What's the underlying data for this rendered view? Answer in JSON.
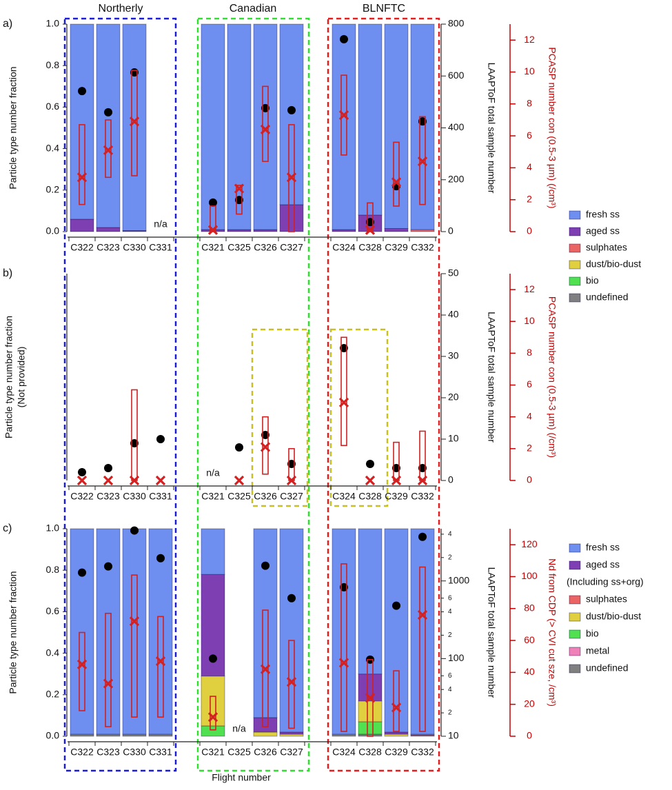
{
  "groups": [
    "Northerly",
    "Canadian",
    "BLNFTC"
  ],
  "x_label": "Flight number",
  "chart_data": [
    {
      "type": "bar",
      "panel_label": "a)",
      "y_label": "Particle type number fraction",
      "y2_label": "LAAPToF total sample number",
      "y3_label": "PCASP number con (0.5-3 µm) (/cm³)",
      "categories": [
        "C322",
        "C323",
        "C330",
        "C331",
        "C321",
        "C325",
        "C326",
        "C327",
        "C324",
        "C328",
        "C329",
        "C332"
      ],
      "ylim": [
        0,
        1
      ],
      "yticks": [
        {
          "value": 0,
          "label": "0.0"
        },
        {
          "value": 0.2,
          "label": "0.2"
        },
        {
          "value": 0.4,
          "label": "0.4"
        },
        {
          "value": 0.6,
          "label": "0.6"
        },
        {
          "value": 0.8,
          "label": "0.8"
        },
        {
          "value": 1,
          "label": "1.0"
        }
      ],
      "y2lim": [
        0,
        800
      ],
      "y2ticks": [
        0,
        200,
        400,
        600,
        800
      ],
      "y3lim": [
        0,
        13
      ],
      "y3ticks": [
        0,
        2,
        4,
        6,
        8,
        10,
        12
      ],
      "series": [
        {
          "name": "fresh ss",
          "color": "#6f8ff0",
          "values": [
            0.94,
            0.98,
            0.995,
            null,
            0.99,
            0.99,
            0.99,
            0.87,
            0.99,
            0.92,
            0.985,
            0.99
          ]
        },
        {
          "name": "aged ss",
          "color": "#7d3fb2",
          "values": [
            0.06,
            0.02,
            0.005,
            null,
            0.01,
            0.01,
            0.01,
            0.13,
            0.01,
            0.08,
            0.015,
            0
          ]
        },
        {
          "name": "sulphates",
          "color": "#ea6464",
          "values": [
            0,
            0,
            0,
            null,
            0,
            0,
            0,
            0,
            0,
            0,
            0,
            0.01
          ]
        },
        {
          "name": "dust/bio-dust",
          "color": "#e0d040",
          "values": [
            0,
            0,
            0,
            null,
            0,
            0,
            0,
            0,
            0,
            0,
            0,
            0
          ]
        },
        {
          "name": "bio",
          "color": "#50e050",
          "values": [
            0,
            0,
            0,
            null,
            0,
            0,
            0,
            0,
            0,
            0,
            0,
            0
          ]
        },
        {
          "name": "undefined",
          "color": "#808080",
          "values": [
            0,
            0,
            0,
            null,
            0,
            0,
            0,
            0,
            0,
            0,
            0,
            0
          ]
        }
      ],
      "sample_number": {
        "axis": "y2",
        "values": [
          542,
          460,
          614,
          null,
          112,
          122,
          476,
          468,
          742,
          37,
          175,
          425
        ]
      },
      "pcasp": {
        "axis": "y3",
        "values": [
          3.4,
          5.1,
          6.9,
          null,
          0.1,
          2.7,
          6.4,
          3.4,
          7.3,
          0.1,
          3.1,
          4.4
        ],
        "max": [
          6.7,
          7.0,
          10.1,
          null,
          1.6,
          2.9,
          9.1,
          6.7,
          9.8,
          1.8,
          5.6,
          7.2
        ],
        "min": [
          1.7,
          3.4,
          3.5,
          null,
          0,
          1.1,
          4.4,
          0,
          4.8,
          0,
          1.6,
          1.7
        ]
      },
      "annotations": [
        {
          "text": "n/a",
          "category": "C331"
        }
      ]
    },
    {
      "type": "bar",
      "panel_label": "b)",
      "y_label": "Particle type number fraction",
      "y_sublabel": "(Not provided)",
      "y2_label": "LAAPToF total sample number",
      "y3_label": "PCASP number con (0.5-3 µm) (/cm³)",
      "categories": [
        "C322",
        "C323",
        "C330",
        "C331",
        "C321",
        "C325",
        "C326",
        "C327",
        "C324",
        "C328",
        "C329",
        "C332"
      ],
      "y2lim": [
        0,
        50
      ],
      "y2ticks": [
        0,
        10,
        20,
        30,
        40,
        50
      ],
      "y3lim": [
        0,
        13
      ],
      "y3ticks": [
        0,
        2,
        4,
        6,
        8,
        10,
        12
      ],
      "sample_number": {
        "axis": "y2",
        "values": [
          2,
          3,
          9,
          10,
          null,
          8,
          11,
          4,
          32,
          4,
          3,
          3
        ]
      },
      "pcasp": {
        "axis": "y3",
        "values": [
          0,
          0,
          0,
          0,
          null,
          0,
          2.1,
          0,
          4.9,
          0,
          0,
          0
        ],
        "max": [
          null,
          null,
          5.7,
          null,
          null,
          null,
          4.0,
          2.0,
          9.0,
          null,
          2.4,
          3.1
        ],
        "min": [
          null,
          null,
          0,
          null,
          null,
          null,
          0.4,
          0,
          2.2,
          null,
          0,
          0
        ]
      },
      "annotations": [
        {
          "text": "n/a",
          "category": "C321"
        }
      ]
    },
    {
      "type": "bar",
      "panel_label": "c)",
      "y_label": "Particle type number fraction",
      "y2_label": "LAAPToF total sample number",
      "y3_label": "Nd from CDP (> CVI cut sze, /cm³)",
      "categories": [
        "C322",
        "C323",
        "C330",
        "C331",
        "C321",
        "C325",
        "C326",
        "C327",
        "C324",
        "C328",
        "C329",
        "C332"
      ],
      "ylim": [
        0,
        1
      ],
      "yticks": [
        {
          "value": 0,
          "label": "0.0"
        },
        {
          "value": 0.2,
          "label": "0.2"
        },
        {
          "value": 0.4,
          "label": "0.4"
        },
        {
          "value": 0.6,
          "label": "0.6"
        },
        {
          "value": 0.8,
          "label": "0.8"
        },
        {
          "value": 1,
          "label": "1.0"
        }
      ],
      "y2_log": true,
      "y2lim": [
        10,
        4700
      ],
      "y2ticks": [
        10,
        {
          "value": 20,
          "label": "2"
        },
        {
          "value": 40,
          "label": "4"
        },
        {
          "value": 60,
          "label": "6"
        },
        100,
        {
          "value": 200,
          "label": "2"
        },
        {
          "value": 400,
          "label": "4"
        },
        {
          "value": 600,
          "label": "6"
        },
        1000,
        {
          "value": 2000,
          "label": "2"
        },
        {
          "value": 4000,
          "label": "4"
        }
      ],
      "y3lim": [
        0,
        130
      ],
      "y3ticks": [
        0,
        20,
        40,
        60,
        80,
        100,
        120
      ],
      "legend_note": "(Including ss+org)",
      "series": [
        {
          "name": "fresh ss",
          "color": "#6f8ff0",
          "values": [
            0.99,
            0.99,
            0.99,
            0.99,
            0.22,
            null,
            0.91,
            0.98,
            0.99,
            0.7,
            0.98,
            0.99
          ]
        },
        {
          "name": "aged ss",
          "color": "#7d3fb2",
          "values": [
            0,
            0,
            0,
            0,
            0.49,
            null,
            0.07,
            0.01,
            0,
            0.13,
            0.01,
            0
          ]
        },
        {
          "name": "sulphates",
          "color": "#ea6464",
          "values": [
            0,
            0,
            0,
            0,
            0,
            null,
            0,
            0,
            0,
            0,
            0,
            0.005
          ]
        },
        {
          "name": "dust/bio-dust",
          "color": "#e0d040",
          "values": [
            0,
            0,
            0,
            0,
            0.24,
            null,
            0.02,
            0.01,
            0,
            0.1,
            0.01,
            0
          ]
        },
        {
          "name": "bio",
          "color": "#50e050",
          "values": [
            0,
            0,
            0,
            0,
            0.05,
            null,
            0,
            0,
            0,
            0.06,
            0,
            0
          ]
        },
        {
          "name": "metal",
          "color": "#f080b8",
          "values": [
            0,
            0,
            0,
            0,
            0,
            null,
            0,
            0,
            0,
            0,
            0,
            0
          ]
        },
        {
          "name": "undefined",
          "color": "#808080",
          "values": [
            0.01,
            0.01,
            0.01,
            0.01,
            0,
            null,
            0,
            0,
            0.01,
            0.01,
            0,
            0.005
          ]
        }
      ],
      "sample_number": {
        "axis": "y2",
        "values": [
          1280,
          1540,
          4460,
          1960,
          100,
          null,
          1570,
          600,
          830,
          97,
          480,
          3700
        ]
      },
      "pcasp": {
        "axis": "y3",
        "values": [
          45,
          33,
          72,
          47,
          12,
          null,
          42,
          34,
          46,
          24,
          18,
          76
        ],
        "max": [
          65,
          77,
          101,
          75,
          25,
          null,
          79,
          60,
          108,
          48,
          41,
          106
        ],
        "min": [
          16,
          6,
          12,
          12,
          4,
          null,
          6,
          5,
          3,
          0,
          3,
          3
        ]
      },
      "annotations": [
        {
          "text": "n/a",
          "category": "C325"
        }
      ]
    }
  ]
}
